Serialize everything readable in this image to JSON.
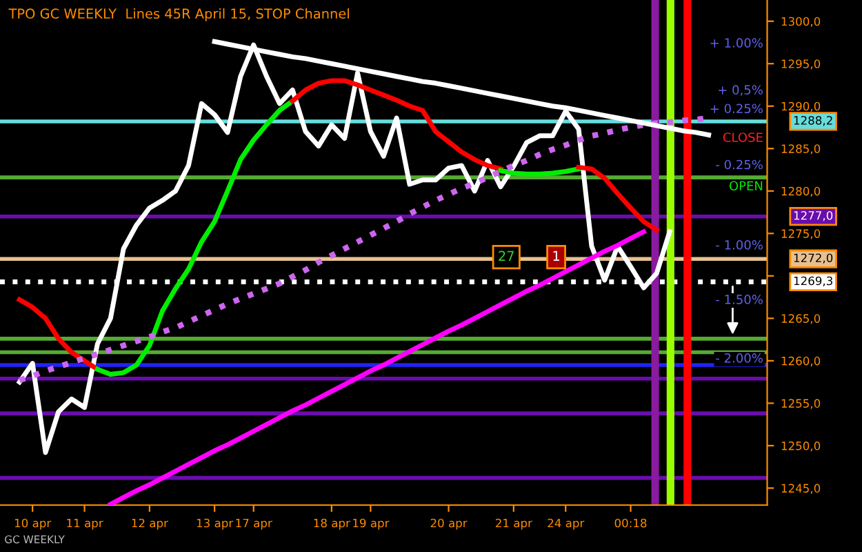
{
  "chart_data": {
    "type": "line",
    "title": "TPO GC WEEKLY  Lines 45R April 15, STOP Channel",
    "categories": [
      null,
      null,
      "10 apr",
      null,
      null,
      null,
      "11 apr",
      null,
      null,
      null,
      null,
      "12 apr",
      null,
      null,
      null,
      null,
      "13 apr",
      null,
      null,
      "17 apr",
      null,
      null,
      null,
      null,
      null,
      "18 apr",
      null,
      null,
      "19 apr",
      null,
      null,
      null,
      null,
      null,
      "20 apr",
      null,
      null,
      null,
      null,
      "21 apr",
      null,
      null,
      null,
      "24 apr",
      null,
      null,
      null,
      null,
      "00:18",
      null,
      null,
      null,
      null,
      null,
      null,
      null,
      null,
      null,
      null
    ],
    "ylim": [
      1243,
      1302.5
    ],
    "yticks": [
      {
        "value": 1245,
        "label": "1245,0"
      },
      {
        "value": 1250,
        "label": "1250,0"
      },
      {
        "value": 1255,
        "label": "1255,0"
      },
      {
        "value": 1260,
        "label": "1260,0"
      },
      {
        "value": 1265,
        "label": "1265,0"
      },
      {
        "value": 1270,
        "label": null
      },
      {
        "value": 1275,
        "label": "1275,0"
      },
      {
        "value": 1280,
        "label": "1280,0"
      },
      {
        "value": 1285,
        "label": "1285,0"
      },
      {
        "value": 1290,
        "label": "1290,0"
      },
      {
        "value": 1295,
        "label": "1295,0"
      },
      {
        "value": 1300,
        "label": "1300,0"
      }
    ],
    "grid": false,
    "series": [
      {
        "color": "#ffffff",
        "line_style": "solid",
        "values": [
          null,
          1257.5,
          1259.7,
          1249.2,
          1254,
          1255.5,
          1254.5,
          1262,
          1265,
          1273.2,
          1276,
          1278,
          1278.9,
          1280,
          1283,
          1290.3,
          1289,
          1286.9,
          1293.5,
          1297.2,
          1293.5,
          1290.3,
          1291.9,
          1287,
          1285.3,
          1287.8,
          1286.2,
          1293.9,
          1287,
          1284.1,
          1288.6,
          1280.8,
          1281.3,
          1281.3,
          1282.7,
          1283,
          1280,
          1283.6,
          1280.5,
          1282.9,
          1285.7,
          1286.5,
          1286.5,
          1289.4,
          1287.3,
          1273.5,
          1269.5,
          1273.5,
          1271.1,
          1268.6,
          1270.3,
          1275.2,
          null,
          null,
          null,
          null,
          null,
          null,
          null
        ]
      },
      {
        "color": "#ff0000",
        "line_style": "solid",
        "values": [
          null,
          1267.2,
          1266.3,
          1265,
          1262.6,
          1261,
          1260,
          1259,
          null,
          null,
          null,
          null,
          null,
          null,
          null,
          null,
          null,
          null,
          null,
          null,
          null,
          null,
          null,
          null,
          null,
          null,
          null,
          null,
          null,
          null,
          null,
          null,
          null,
          null,
          null,
          null,
          null,
          null,
          null,
          null,
          null,
          null,
          null,
          null,
          null,
          null,
          null,
          null,
          null,
          null,
          null,
          null,
          null,
          null,
          null,
          null,
          null,
          null,
          null
        ]
      },
      {
        "color": "#00ee00",
        "line_style": "solid",
        "values": [
          null,
          null,
          null,
          null,
          null,
          null,
          null,
          1259,
          1258.4,
          1258.6,
          1259.5,
          1261.8,
          1265.9,
          1268.5,
          1270.8,
          1274,
          1276.4,
          1280,
          1283.7,
          1286,
          1287.8,
          1289.5,
          1290.6,
          null,
          null,
          null,
          null,
          null,
          null,
          null,
          null,
          null,
          null,
          null,
          null,
          null,
          null,
          null,
          null,
          null,
          null,
          null,
          null,
          null,
          null,
          null,
          null,
          null,
          null,
          null,
          null,
          null,
          null,
          null,
          null,
          null,
          null,
          null,
          null
        ]
      },
      {
        "color": "#ff0000",
        "line_style": "solid",
        "values": [
          null,
          null,
          null,
          null,
          null,
          null,
          null,
          null,
          null,
          null,
          null,
          null,
          null,
          null,
          null,
          null,
          null,
          null,
          null,
          null,
          null,
          null,
          1290.6,
          1291.9,
          1292.7,
          1293,
          1293,
          1292.5,
          1291.9,
          1291.3,
          1290.7,
          1290,
          1289.5,
          1287,
          1285.8,
          1284.6,
          1283.7,
          1283,
          1282.6,
          null,
          null,
          null,
          null,
          null,
          null,
          null,
          null,
          null,
          null,
          null,
          null,
          null,
          null,
          null,
          null,
          null,
          null,
          null,
          null
        ]
      },
      {
        "color": "#00ee00",
        "line_style": "solid",
        "values": [
          null,
          null,
          null,
          null,
          null,
          null,
          null,
          null,
          null,
          null,
          null,
          null,
          null,
          null,
          null,
          null,
          null,
          null,
          null,
          null,
          null,
          null,
          null,
          null,
          null,
          null,
          null,
          null,
          null,
          null,
          null,
          null,
          null,
          null,
          null,
          null,
          null,
          null,
          1282.4,
          1282.1,
          1282,
          1282,
          1282.1,
          1282.3,
          1282.6,
          null,
          null,
          null,
          null,
          null,
          null,
          null,
          null,
          null,
          null,
          null,
          null,
          null,
          null
        ]
      },
      {
        "color": "#ff0000",
        "line_style": "solid",
        "values": [
          null,
          null,
          null,
          null,
          null,
          null,
          null,
          null,
          null,
          null,
          null,
          null,
          null,
          null,
          null,
          null,
          null,
          null,
          null,
          null,
          null,
          null,
          null,
          null,
          null,
          null,
          null,
          null,
          null,
          null,
          null,
          null,
          null,
          null,
          null,
          null,
          null,
          null,
          null,
          null,
          null,
          null,
          null,
          null,
          1282.8,
          1282.6,
          1281.5,
          1279.7,
          1278,
          1276.4,
          1275.4,
          null,
          null,
          null,
          null,
          null,
          null,
          null,
          null
        ]
      },
      {
        "color": "#ff00ff",
        "line_style": "solid",
        "values": [
          null,
          null,
          null,
          null,
          null,
          null,
          null,
          null,
          1243.1,
          1243.9,
          1244.7,
          1245.4,
          1246.2,
          1247.0,
          1247.8,
          1248.6,
          1249.4,
          1250.1,
          1250.9,
          1251.7,
          1252.5,
          1253.3,
          1254.1,
          1254.8,
          1255.6,
          1256.4,
          1257.2,
          1258.0,
          1258.8,
          1259.5,
          1260.3,
          1261.1,
          1261.9,
          1262.7,
          1263.5,
          1264.2,
          1265.0,
          1265.8,
          1266.6,
          1267.4,
          1268.2,
          1268.9,
          1269.7,
          1270.5,
          1271.3,
          1272.1,
          1272.9,
          1273.6,
          1274.4,
          1275.2,
          null,
          null,
          null,
          null,
          null,
          null,
          null,
          null,
          null
        ]
      },
      {
        "color": "#cc66ee",
        "line_style": "dotted",
        "values": [
          null,
          1257.7,
          1258.2,
          1258.8,
          1259.3,
          1259.8,
          1260.3,
          1260.8,
          1261.3,
          1261.8,
          1262.3,
          1262.8,
          1263.4,
          1263.9,
          1264.6,
          1265.3,
          1266.0,
          1266.7,
          1267.3,
          1267.9,
          1268.5,
          1269.1,
          1269.9,
          1270.7,
          1271.6,
          1272.4,
          1273.2,
          1274.0,
          1274.8,
          1275.6,
          1276.4,
          1277.3,
          1278.1,
          1278.9,
          1279.6,
          1280.3,
          1280.9,
          1281.6,
          1282.3,
          1283.0,
          1283.6,
          1284.3,
          1284.9,
          1285.4,
          1286.0,
          1286.5,
          1286.8,
          1287.2,
          1287.5,
          1287.8,
          1288.0,
          1288.1,
          1288.3,
          1288.4,
          1288.6,
          null,
          null,
          null,
          null
        ]
      },
      {
        "color": "#ffffff",
        "line_style": "solid",
        "values": [
          null,
          null,
          null,
          null,
          null,
          null,
          null,
          null,
          null,
          null,
          null,
          null,
          null,
          null,
          null,
          null,
          1297.6,
          1297.3,
          1297.0,
          1296.7,
          1296.4,
          1296.1,
          1295.8,
          1295.6,
          1295.3,
          1295.0,
          1294.7,
          1294.4,
          1294.1,
          1293.8,
          1293.5,
          1293.2,
          1292.9,
          1292.7,
          1292.4,
          1292.1,
          1291.8,
          1291.5,
          1291.2,
          1290.9,
          1290.6,
          1290.3,
          1290.0,
          1289.8,
          1289.5,
          1289.2,
          1288.9,
          1288.6,
          1288.3,
          1288.0,
          1287.7,
          1287.4,
          1287.1,
          1286.9,
          1286.6,
          null,
          null,
          null,
          null
        ]
      }
    ],
    "ref_lines": [
      {
        "axis": "y",
        "value": 1288.2,
        "label": "1288,2",
        "color": "#66dddd",
        "line_style": "solid"
      },
      {
        "axis": "y",
        "value": 1277.0,
        "label": "1277,0",
        "color": "#6a0dad",
        "line_style": "solid"
      },
      {
        "axis": "y",
        "value": 1272.0,
        "label": "1272,0",
        "color": "#e8c090",
        "line_style": "solid"
      },
      {
        "axis": "y",
        "value": 1269.3,
        "label": "1269,3",
        "color": "#ffffff",
        "line_style": "dotted"
      },
      {
        "axis": "y",
        "value": 1281.6,
        "color": "#55aa33",
        "line_style": "solid"
      },
      {
        "axis": "y",
        "value": 1262.6,
        "color": "#55aa33",
        "line_style": "solid"
      },
      {
        "axis": "y",
        "value": 1261.0,
        "color": "#55aa33",
        "line_style": "solid"
      },
      {
        "axis": "y",
        "value": 1259.5,
        "color": "#2222ff",
        "line_style": "solid"
      },
      {
        "axis": "y",
        "value": 1257.9,
        "color": "#6a0dad",
        "line_style": "solid"
      },
      {
        "axis": "y",
        "value": 1253.8,
        "color": "#6a0dad",
        "line_style": "solid"
      },
      {
        "axis": "y",
        "value": 1246.2,
        "color": "#6a0dad",
        "line_style": "solid"
      }
    ],
    "annotations": [
      "+ 1.00%",
      "+ 0,5%",
      "+ 0.25%",
      "CLOSE",
      "- 0.25%",
      "OPEN",
      "- 1.00%",
      "- 1.50%",
      "- 2.00%",
      "27",
      "1",
      "GC WEEKLY"
    ]
  }
}
